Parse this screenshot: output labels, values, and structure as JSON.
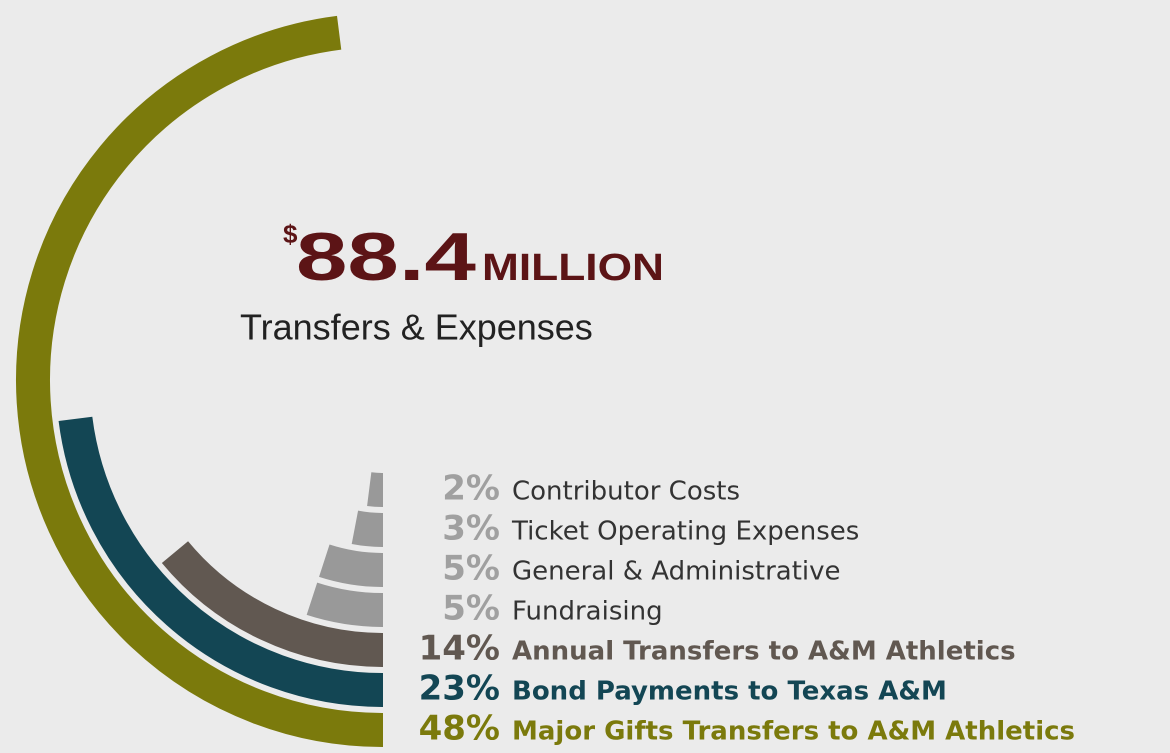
{
  "chart_data": {
    "type": "radial-bar",
    "total_prefix": "$",
    "total": "88.4",
    "total_unit": "MILLION",
    "title": "Transfers & Expenses",
    "categories": [
      "Contributor Costs",
      "Ticket Operating Expenses",
      "General & Administrative",
      "Fundraising",
      "Annual Transfers to A&M Athletics",
      "Bond Payments to Texas A&M",
      "Major Gifts Transfers to A&M Athletics"
    ],
    "values": [
      2,
      3,
      5,
      5,
      14,
      23,
      48
    ],
    "value_labels": [
      "2%",
      "3%",
      "5%",
      "5%",
      "14%",
      "23%",
      "48%"
    ],
    "colors": [
      "#999999",
      "#999999",
      "#999999",
      "#999999",
      "#615851",
      "#134654",
      "#7b7a0c"
    ],
    "label_colors": [
      "#a0a0a0",
      "#a0a0a0",
      "#a0a0a0",
      "#a0a0a0",
      "#615851",
      "#134654",
      "#7b7a0c"
    ],
    "ylim": [
      0,
      100
    ]
  }
}
